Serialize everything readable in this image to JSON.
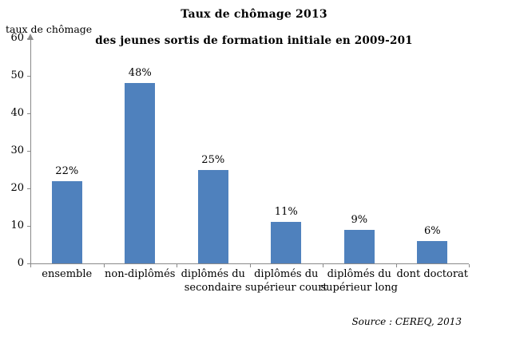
{
  "header": {
    "title": "Taux de chômage 2013",
    "subtitle": "des jeunes sortis de formation initiale en 2009-201"
  },
  "chart_data": {
    "type": "bar",
    "title": "Taux de chômage 2013",
    "subtitle": "des jeunes sortis de formation initiale en 2009-201",
    "ylabel": "taux de chômage",
    "xlabel": "",
    "ylim": [
      0,
      60
    ],
    "yticks": [
      0,
      10,
      20,
      30,
      40,
      50,
      60
    ],
    "grid": false,
    "legend_position": "none",
    "categories": [
      "ensemble",
      "non-diplômés",
      "diplômés du secondaire",
      "diplômés du supérieur court",
      "diplômés du supérieur long",
      "dont doctorat"
    ],
    "category_lines": [
      [
        "ensemble"
      ],
      [
        "non-diplômés"
      ],
      [
        "diplômés du",
        "secondaire"
      ],
      [
        "diplômés du",
        "supérieur court"
      ],
      [
        "diplômés du",
        "supérieur long"
      ],
      [
        "dont doctorat"
      ]
    ],
    "values": [
      22,
      48,
      25,
      11,
      9,
      6
    ],
    "value_labels": [
      "22%",
      "48%",
      "25%",
      "11%",
      "9%",
      "6%"
    ],
    "bar_color": "#4f81bd",
    "axis_color": "#8a8a8a"
  },
  "footer": {
    "source": "Source : CEREQ, 2013"
  }
}
